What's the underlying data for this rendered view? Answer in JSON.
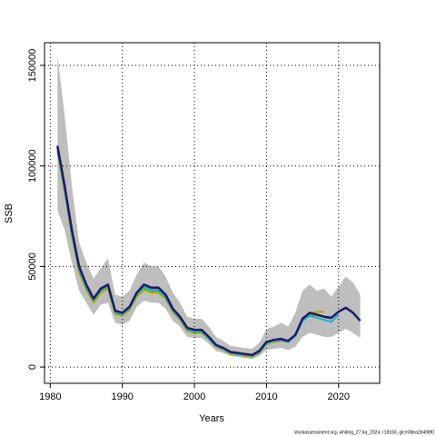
{
  "chart_data": {
    "type": "line",
    "xlabel": "Years",
    "ylabel": "SSB",
    "footnote": "stockassessment.org, whiting_27.6a_2024, r18160, git:e38ea2b498f0",
    "x": [
      1981,
      1982,
      1983,
      1984,
      1985,
      1986,
      1987,
      1988,
      1989,
      1990,
      1991,
      1992,
      1993,
      1994,
      1995,
      1996,
      1997,
      1998,
      1999,
      2000,
      2001,
      2002,
      2003,
      2004,
      2005,
      2006,
      2007,
      2008,
      2009,
      2010,
      2011,
      2012,
      2013,
      2014,
      2015,
      2016,
      2017,
      2018,
      2019,
      2020,
      2021,
      2022,
      2023
    ],
    "band": {
      "color": "#bebebe",
      "upper": [
        155000,
        125000,
        90000,
        62000,
        52000,
        44000,
        49000,
        54000,
        36000,
        35000,
        38000,
        46000,
        52000,
        50000,
        50000,
        45000,
        37000,
        32000,
        25000,
        24000,
        24000,
        20000,
        15000,
        13000,
        10500,
        10000,
        9500,
        9000,
        12000,
        19000,
        20000,
        22000,
        20000,
        27000,
        38000,
        41000,
        38000,
        39000,
        35000,
        40000,
        45000,
        42000,
        36000
      ],
      "lower": [
        78000,
        68000,
        52000,
        38000,
        32000,
        26000,
        31000,
        32000,
        22000,
        21000,
        23000,
        30000,
        33000,
        32000,
        32000,
        29000,
        23000,
        20000,
        15000,
        14500,
        14500,
        11500,
        8000,
        7000,
        5500,
        5000,
        4500,
        4000,
        5500,
        8500,
        9000,
        9500,
        8500,
        10000,
        15000,
        17000,
        16000,
        15000,
        15000,
        17000,
        19000,
        17000,
        14500
      ]
    },
    "series": [
      {
        "color": "#b8a000",
        "values": [
          107000,
          87000,
          65000,
          47000,
          38500,
          32000,
          37000,
          39000,
          26500,
          25500,
          28500,
          35000,
          38500,
          37000,
          37000,
          34000,
          27500,
          23500,
          18000,
          17000,
          17000,
          14000,
          10000,
          8500,
          6500,
          6000,
          5500,
          5000,
          7000,
          11500,
          12500,
          13000,
          12500,
          15500,
          24500,
          26500,
          27500,
          27500,
          null,
          null,
          null,
          null,
          null
        ]
      },
      {
        "color": "#4caf50",
        "values": [
          108000,
          88000,
          66000,
          48500,
          39500,
          33000,
          38000,
          40000,
          27000,
          26000,
          29000,
          36000,
          39500,
          38000,
          38000,
          34500,
          28000,
          24000,
          18500,
          17500,
          17500,
          14000,
          10500,
          9000,
          7000,
          6500,
          6000,
          5500,
          7500,
          12000,
          13000,
          13500,
          12500,
          15500,
          23500,
          26000,
          26000,
          25000,
          24000,
          null,
          null,
          null,
          null
        ]
      },
      {
        "color": "#20b2c0",
        "values": [
          109000,
          89000,
          67000,
          49000,
          40000,
          33500,
          38500,
          40500,
          27500,
          26500,
          29500,
          36500,
          40000,
          38500,
          38500,
          35000,
          28500,
          24500,
          19000,
          18000,
          18000,
          14500,
          10500,
          9000,
          7000,
          6500,
          6000,
          5500,
          7500,
          12000,
          13000,
          13500,
          12500,
          15500,
          23000,
          25500,
          24500,
          23500,
          22500,
          26000,
          null,
          null,
          null
        ]
      },
      {
        "color": "#1a1a6e",
        "values": [
          110000,
          90000,
          68000,
          50000,
          41000,
          34000,
          39000,
          41000,
          28000,
          27000,
          30000,
          37000,
          41000,
          39500,
          39500,
          36000,
          29000,
          25000,
          19500,
          18500,
          18500,
          15000,
          11000,
          9500,
          7500,
          7000,
          6500,
          6000,
          8000,
          12500,
          13500,
          14000,
          13000,
          16000,
          24000,
          27000,
          26000,
          25000,
          24500,
          27500,
          29500,
          27000,
          23000
        ]
      }
    ],
    "xlim": [
      1979.2,
      2025.7
    ],
    "ylim": [
      -8100,
      161300
    ],
    "xticks": [
      1980,
      1990,
      2000,
      2010,
      2020
    ],
    "yticks": [
      0,
      50000,
      100000,
      150000
    ],
    "grid": true
  }
}
